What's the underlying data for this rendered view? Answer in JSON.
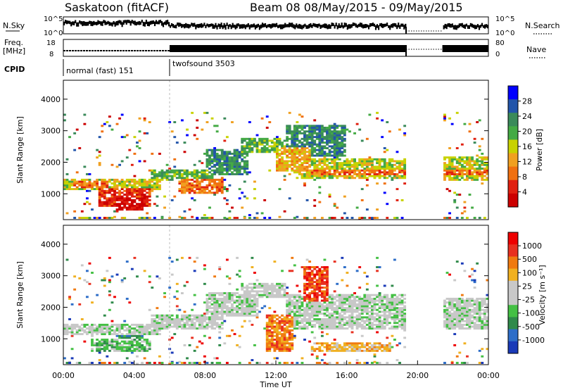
{
  "header": {
    "title": "Saskatoon (fitACF)",
    "beam_info": "Beam 08  08/May/2015 - 09/May/2015"
  },
  "strip_labels": {
    "nsky": "N.Sky",
    "nsearch": "N.Search",
    "freq_top": "Freq.",
    "freq_unit": "[MHz]",
    "nave": "Nave",
    "cpid": "CPID",
    "nsky_ticks": [
      "10^5",
      "10^0"
    ],
    "nsearch_ticks": [
      "10^5",
      "10^0"
    ],
    "freq_ticks": [
      "18",
      "8"
    ],
    "nave_ticks": [
      "80",
      "0"
    ]
  },
  "cpid_segments": [
    {
      "label": "normal (fast) 151",
      "start_hour": 0,
      "end_hour": 6
    },
    {
      "label": "twofsound 3503",
      "start_hour": 6,
      "end_hour": 24
    }
  ],
  "colors": {
    "power": [
      "#0000ff",
      "#2255aa",
      "#3a8a5a",
      "#44aa44",
      "#c8d200",
      "#f0a020",
      "#f07010",
      "#e02010",
      "#cc0000"
    ],
    "velocity": [
      "#1a3ab8",
      "#2e6ec8",
      "#2f8a4a",
      "#44c044",
      "#c8c8c8",
      "#c8c8c8",
      "#f0b020",
      "#f07a10",
      "#e83020",
      "#ee0000"
    ]
  },
  "chart_data": [
    {
      "type": "heatmap",
      "name": "power",
      "xlabel": "",
      "ylabel": "Slant Range [km]",
      "xlim": [
        0,
        24
      ],
      "ylim": [
        180,
        4600
      ],
      "yticks": [
        1000,
        2000,
        3000,
        4000
      ],
      "colorbar_label": "Power [dB]",
      "colorbar_ticks": [
        "28",
        "24",
        "20",
        "16",
        "12",
        "8",
        "4"
      ],
      "bands": [
        {
          "x0": 0.0,
          "x1": 5.5,
          "y0": 1100,
          "y1": 1500,
          "level": 4
        },
        {
          "x0": 2.0,
          "x1": 5.0,
          "y0": 600,
          "y1": 1200,
          "level": 7
        },
        {
          "x0": 3.0,
          "x1": 4.5,
          "y0": 500,
          "y1": 900,
          "level": 8
        },
        {
          "x0": 0.5,
          "x1": 2.5,
          "y0": 1200,
          "y1": 1400,
          "level": 6
        },
        {
          "x0": 6.5,
          "x1": 9.0,
          "y0": 1000,
          "y1": 1500,
          "level": 6
        },
        {
          "x0": 5.0,
          "x1": 8.5,
          "y0": 1400,
          "y1": 1800,
          "level": 3
        },
        {
          "x0": 8.0,
          "x1": 10.5,
          "y0": 1600,
          "y1": 2400,
          "level": 2
        },
        {
          "x0": 10.0,
          "x1": 12.5,
          "y0": 2300,
          "y1": 2800,
          "level": 3
        },
        {
          "x0": 12.0,
          "x1": 14.0,
          "y0": 1700,
          "y1": 2500,
          "level": 5
        },
        {
          "x0": 12.5,
          "x1": 16.0,
          "y0": 2200,
          "y1": 3200,
          "level": 2
        },
        {
          "x0": 13.0,
          "x1": 19.3,
          "y0": 1500,
          "y1": 2100,
          "level": 4
        },
        {
          "x0": 14.0,
          "x1": 19.3,
          "y0": 1600,
          "y1": 1800,
          "level": 6
        },
        {
          "x0": 21.5,
          "x1": 24.0,
          "y0": 1400,
          "y1": 2200,
          "level": 4
        },
        {
          "x0": 21.5,
          "x1": 24.0,
          "y0": 1600,
          "y1": 1800,
          "level": 6
        }
      ]
    },
    {
      "type": "heatmap",
      "name": "velocity",
      "xlabel": "Time UT",
      "ylabel": "Slant Range [km]",
      "xlim": [
        0,
        24
      ],
      "ylim": [
        180,
        4600
      ],
      "yticks": [
        1000,
        2000,
        3000,
        4000
      ],
      "xticks": [
        "00:00",
        "04:00",
        "08:00",
        "12:00",
        "16:00",
        "20:00",
        "00:00"
      ],
      "colorbar_label": "Velocity [m s⁻¹]",
      "colorbar_ticks": [
        "1000",
        "500",
        "100",
        "25",
        "-25",
        "-100",
        "-500",
        "-1000"
      ],
      "bands": [
        {
          "x0": 0.0,
          "x1": 5.5,
          "y0": 1100,
          "y1": 1500,
          "level": 4
        },
        {
          "x0": 1.5,
          "x1": 5.0,
          "y0": 600,
          "y1": 1000,
          "level": 3
        },
        {
          "x0": 3.0,
          "x1": 4.5,
          "y0": 700,
          "y1": 1300,
          "level": 2
        },
        {
          "x0": 5.0,
          "x1": 9.0,
          "y0": 1300,
          "y1": 1800,
          "level": 4
        },
        {
          "x0": 8.0,
          "x1": 11.0,
          "y0": 1700,
          "y1": 2500,
          "level": 4
        },
        {
          "x0": 10.0,
          "x1": 12.5,
          "y0": 2300,
          "y1": 2800,
          "level": 4
        },
        {
          "x0": 11.5,
          "x1": 13.0,
          "y0": 600,
          "y1": 1800,
          "level": 7
        },
        {
          "x0": 13.5,
          "x1": 15.0,
          "y0": 2200,
          "y1": 3300,
          "level": 8
        },
        {
          "x0": 12.5,
          "x1": 19.3,
          "y0": 1300,
          "y1": 2400,
          "level": 4
        },
        {
          "x0": 21.5,
          "x1": 24.0,
          "y0": 1300,
          "y1": 2300,
          "level": 4
        },
        {
          "x0": 14.0,
          "x1": 18.5,
          "y0": 600,
          "y1": 900,
          "level": 6
        }
      ]
    }
  ]
}
